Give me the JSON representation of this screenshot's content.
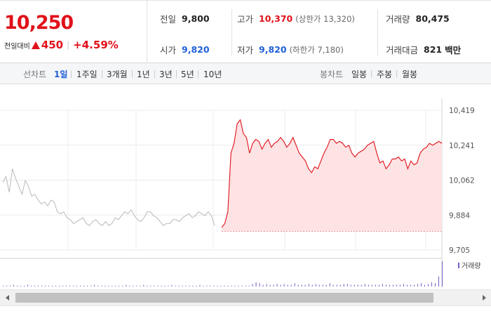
{
  "quote": {
    "current_price": "10,250",
    "prev_compare_label": "전일대비",
    "change_amount": "450",
    "change_percent": "+4.59%",
    "direction": "up"
  },
  "info": {
    "prev_close": {
      "label": "전일",
      "value": "9,800"
    },
    "open": {
      "label": "시가",
      "value": "9,820"
    },
    "high": {
      "label": "고가",
      "value": "10,370",
      "sub": "(상한가 13,320)"
    },
    "low": {
      "label": "저가",
      "value": "9,820",
      "sub": "(하한가 7,180)"
    },
    "volume": {
      "label": "거래량",
      "value": "80,475"
    },
    "trade_value": {
      "label": "거래대금",
      "value": "821",
      "unit": "백만"
    }
  },
  "period_bar": {
    "line_label": "선차트",
    "line_periods": [
      "1일",
      "1주일",
      "3개월",
      "1년",
      "3년",
      "5년",
      "10년"
    ],
    "active_period": "1일",
    "candle_label": "봉차트",
    "candle_periods": [
      "일봉",
      "주봉",
      "월봉"
    ]
  },
  "colors": {
    "up": "#e0121b",
    "down": "#1f5fd6",
    "prev_day_line": "#b9b9b9",
    "today_fill": "#fde3e3",
    "volume_bar": "#7b5cc4"
  },
  "chart_data": {
    "type": "line",
    "y_ticks": [
      "10,419",
      "10,241",
      "10,062",
      "9,884",
      "9,705"
    ],
    "ylim": [
      9705,
      10419
    ],
    "legend": "거래량",
    "baseline_price": 9800,
    "series": [
      {
        "values": [
          10050,
          10080,
          10000,
          10120,
          10070,
          10030,
          9990,
          10060,
          10030,
          9980,
          9990,
          9960,
          9940,
          9950,
          9930,
          9960,
          9950,
          9900,
          9890,
          9900,
          9870,
          9860,
          9840,
          9850,
          9860,
          9870,
          9840,
          9830,
          9850,
          9860,
          9840,
          9830,
          9850,
          9830,
          9840,
          9870,
          9860,
          9880,
          9900,
          9890,
          9910,
          9880,
          9860,
          9850,
          9870,
          9900,
          9900,
          9880,
          9870,
          9850,
          9830,
          9840,
          9840,
          9860,
          9860,
          9850,
          9870,
          9880,
          9890,
          9870,
          9880,
          9900,
          9890,
          9880,
          9900,
          9880,
          9830
        ]
      },
      {
        "values": [
          9820,
          9840,
          9900,
          10200,
          10250,
          10350,
          10370,
          10300,
          10280,
          10200,
          10250,
          10270,
          10260,
          10220,
          10250,
          10270,
          10230,
          10250,
          10260,
          10280,
          10260,
          10230,
          10250,
          10280,
          10240,
          10200,
          10180,
          10160,
          10120,
          10100,
          10130,
          10120,
          10160,
          10200,
          10230,
          10270,
          10270,
          10250,
          10260,
          10250,
          10230,
          10240,
          10200,
          10180,
          10200,
          10210,
          10220,
          10240,
          10250,
          10260,
          10200,
          10150,
          10160,
          10120,
          10140,
          10170,
          10170,
          10180,
          10160,
          10170,
          10120,
          10160,
          10140,
          10150,
          10200,
          10220,
          10230,
          10250,
          10240,
          10250,
          10260,
          10250
        ]
      }
    ],
    "volume": [
      1,
      1,
      1,
      2,
      1,
      1,
      1,
      2,
      1,
      1,
      1,
      1,
      1,
      1,
      1,
      1,
      1,
      1,
      1,
      1,
      1,
      1,
      1,
      1,
      1,
      1,
      2,
      1,
      1,
      1,
      1,
      1,
      1,
      1,
      1,
      2,
      1,
      1,
      1,
      1,
      2,
      1,
      1,
      1,
      1,
      1,
      1,
      1,
      2,
      1,
      1,
      1,
      1,
      1,
      1,
      1,
      2,
      1,
      1,
      1,
      1,
      1,
      1,
      1,
      1,
      1,
      1,
      1,
      1,
      1,
      1,
      3,
      5,
      4,
      2,
      3,
      2,
      2,
      3,
      2,
      3,
      2,
      2,
      4,
      2,
      2,
      2,
      3,
      2,
      3,
      2,
      2,
      2,
      4,
      2,
      2,
      2,
      3,
      3,
      2,
      2,
      2,
      2,
      3,
      2,
      2,
      2,
      2,
      3,
      2,
      2,
      2,
      2,
      2,
      3,
      2,
      2,
      2,
      3,
      4,
      2,
      3,
      5,
      4,
      12,
      30
    ]
  }
}
